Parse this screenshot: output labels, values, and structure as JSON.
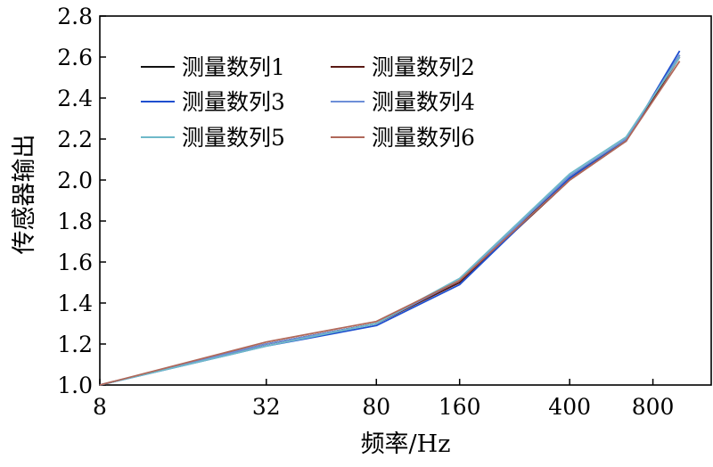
{
  "chart_data": {
    "type": "line",
    "xlabel": "频率/Hz",
    "ylabel": "传感器输出",
    "x_scale": "log",
    "x_ticks": [
      8,
      32,
      80,
      160,
      400,
      800
    ],
    "x_tick_labels": [
      "8",
      "32",
      "80",
      "160",
      "400",
      "800"
    ],
    "xlim": [
      8,
      1300
    ],
    "y_ticks": [
      1.0,
      1.2,
      1.4,
      1.6,
      1.8,
      2.0,
      2.2,
      2.4,
      2.6,
      2.8
    ],
    "y_tick_labels": [
      "1.0",
      "1.2",
      "1.4",
      "1.6",
      "1.8",
      "2.0",
      "2.2",
      "2.4",
      "2.6",
      "2.8"
    ],
    "ylim": [
      1.0,
      2.8
    ],
    "grid": false,
    "legend_placement": "top-left",
    "x": [
      8,
      32,
      80,
      160,
      400,
      640,
      1000
    ],
    "series": [
      {
        "name": "测量数列1",
        "color": "#111111",
        "values": [
          1.0,
          1.2,
          1.3,
          1.5,
          2.01,
          2.2,
          2.61
        ]
      },
      {
        "name": "测量数列2",
        "color": "#5a1a14",
        "values": [
          1.0,
          1.2,
          1.3,
          1.5,
          2.0,
          2.19,
          2.6
        ]
      },
      {
        "name": "测量数列3",
        "color": "#1f4fcf",
        "values": [
          1.0,
          1.19,
          1.29,
          1.49,
          2.01,
          2.19,
          2.63
        ]
      },
      {
        "name": "测量数列4",
        "color": "#6d8fd8",
        "values": [
          1.0,
          1.2,
          1.3,
          1.51,
          2.02,
          2.2,
          2.61
        ]
      },
      {
        "name": "测量数列5",
        "color": "#6fb9c9",
        "values": [
          1.0,
          1.19,
          1.3,
          1.52,
          2.03,
          2.21,
          2.6
        ]
      },
      {
        "name": "测量数列6",
        "color": "#b0685a",
        "values": [
          1.0,
          1.21,
          1.31,
          1.51,
          2.0,
          2.19,
          2.58
        ]
      }
    ]
  }
}
